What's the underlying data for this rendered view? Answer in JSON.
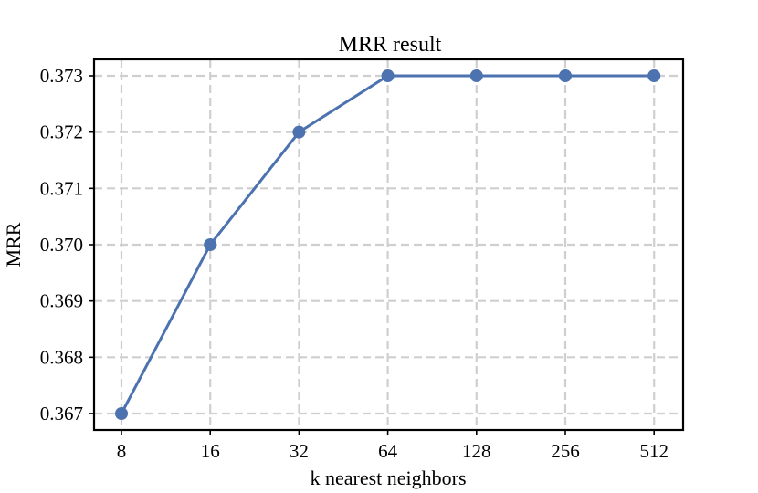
{
  "chart_data": {
    "type": "line",
    "title": "MRR result",
    "xlabel": "k nearest neighbors",
    "ylabel": "MRR",
    "categories": [
      "8",
      "16",
      "32",
      "64",
      "128",
      "256",
      "512"
    ],
    "series": [
      {
        "values": [
          0.367,
          0.37,
          0.372,
          0.373,
          0.373,
          0.373,
          0.373
        ]
      }
    ],
    "ylim": [
      0.367,
      0.373
    ],
    "yticks": [
      "0.367",
      "0.368",
      "0.369",
      "0.370",
      "0.371",
      "0.372",
      "0.373"
    ],
    "grid": true,
    "legend": "none",
    "line_color": "#4c72b0"
  }
}
